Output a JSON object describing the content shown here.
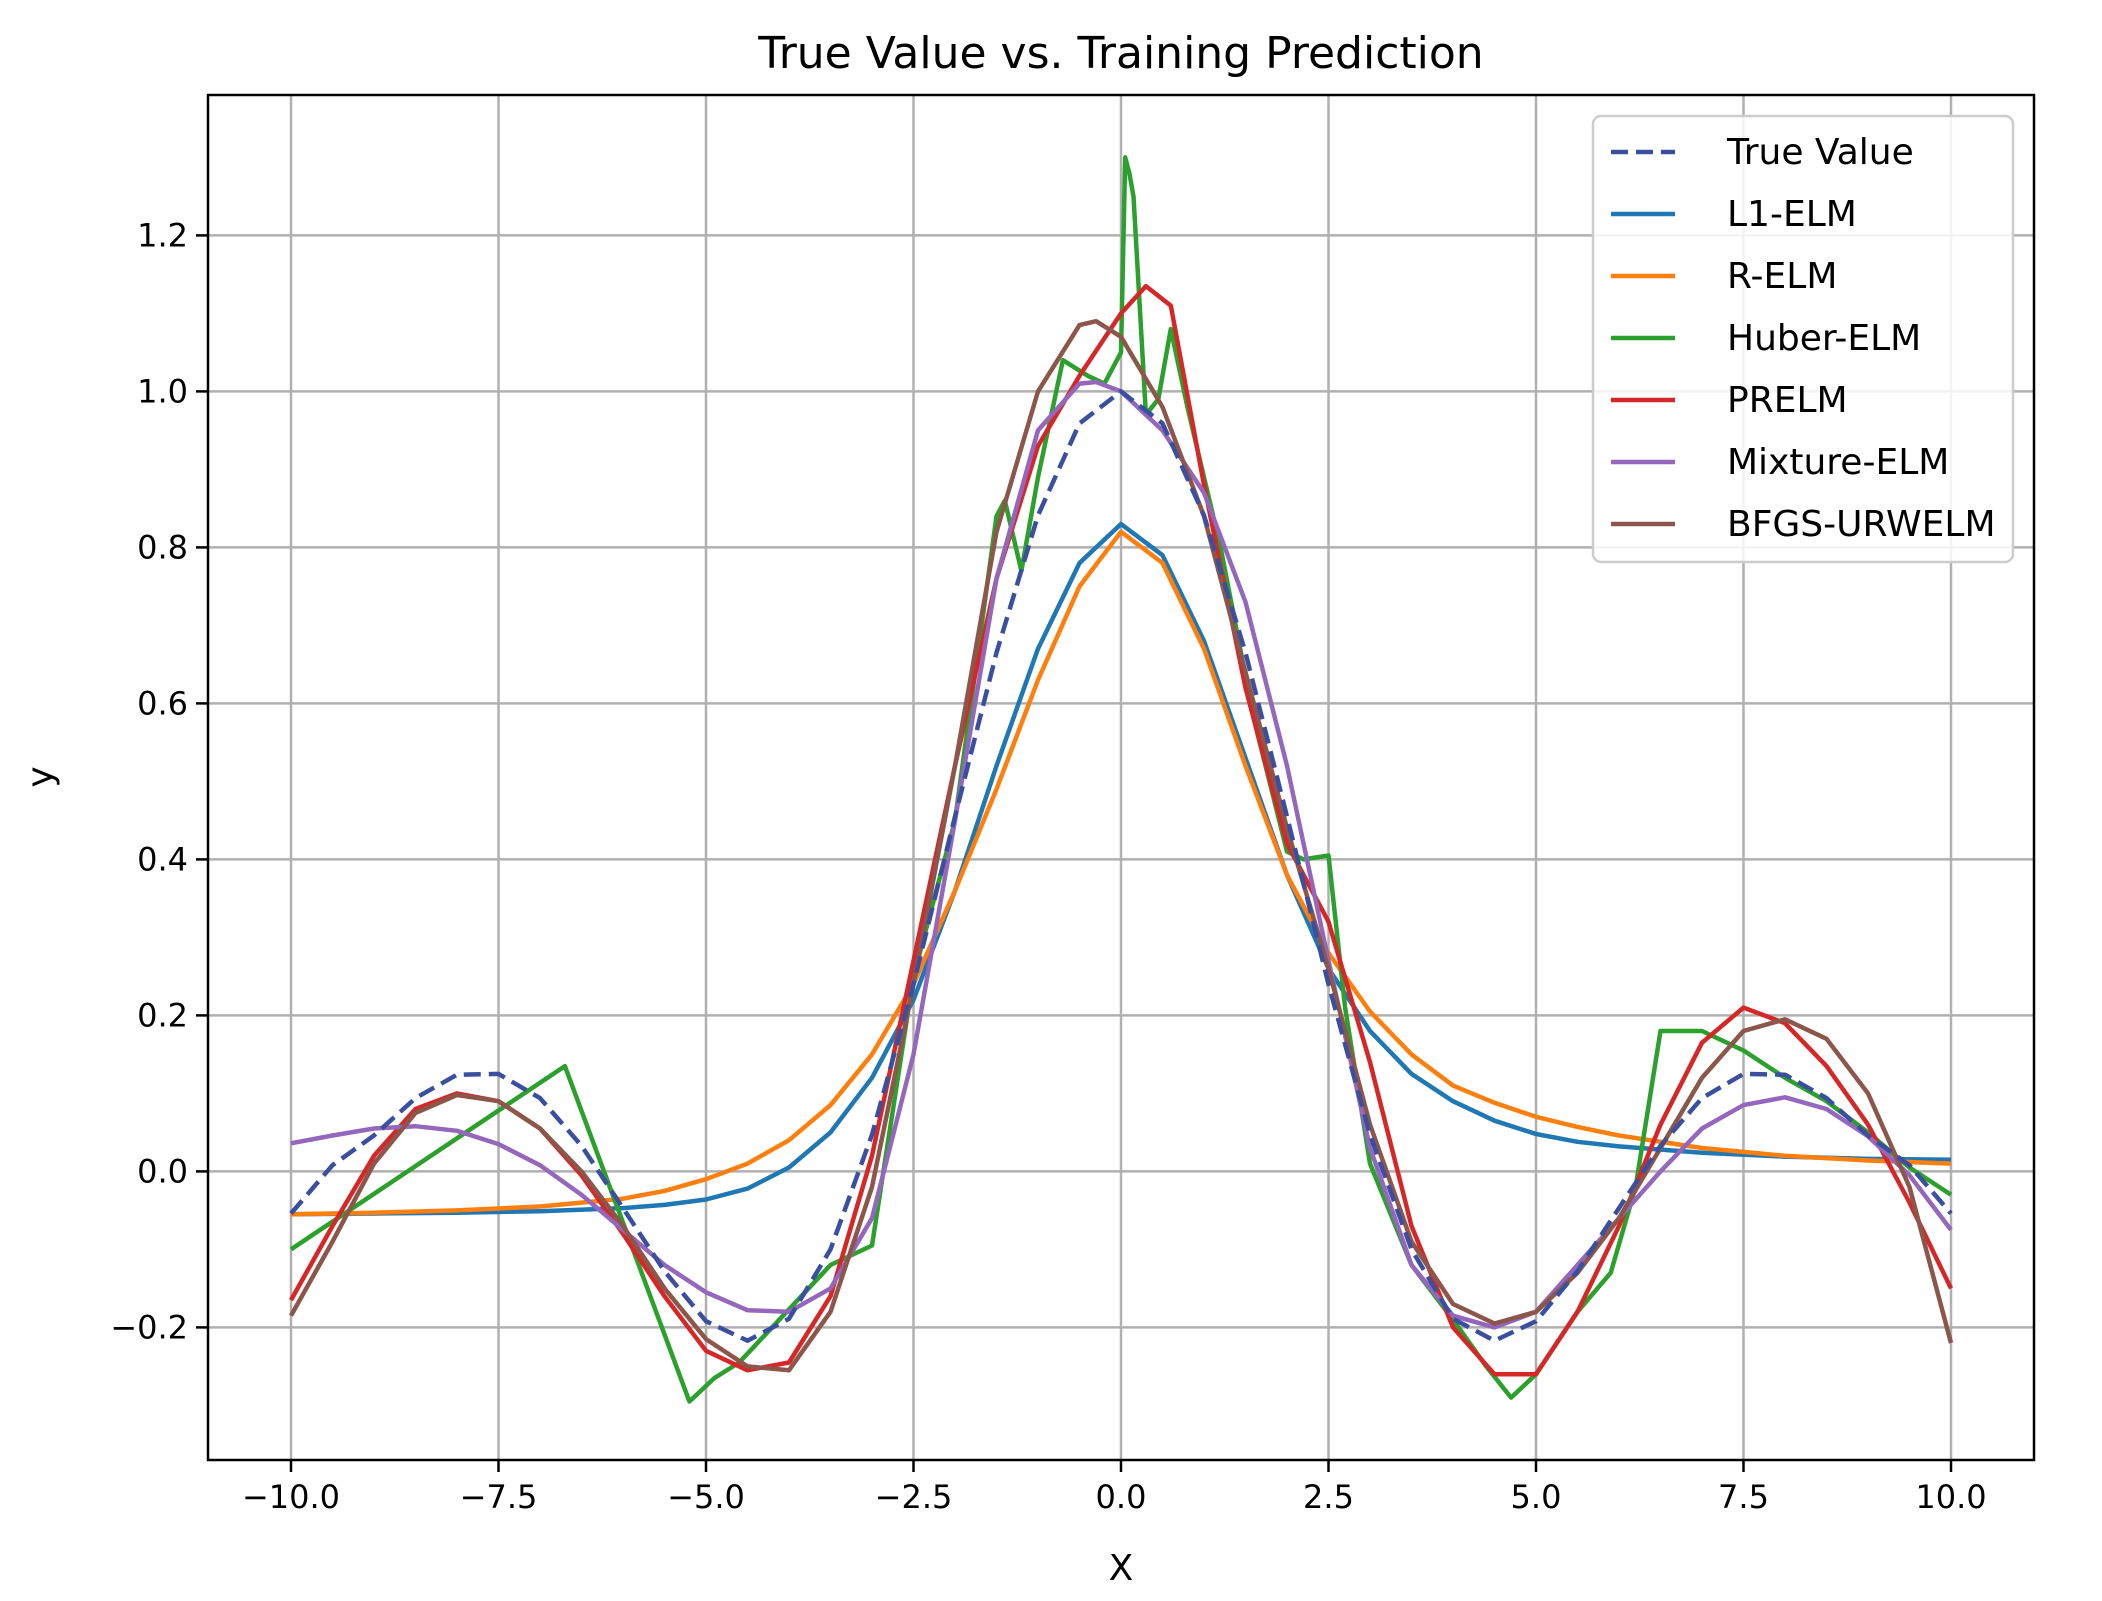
{
  "chart_data": {
    "type": "line",
    "title": "True Value vs. Training Prediction",
    "xlabel": "X",
    "ylabel": "y",
    "xlim": [
      -11.0,
      11.0
    ],
    "ylim": [
      -0.37,
      1.38
    ],
    "xticks": [
      -10.0,
      -7.5,
      -5.0,
      -2.5,
      0.0,
      2.5,
      5.0,
      7.5,
      10.0
    ],
    "xtick_labels": [
      "−10.0",
      "−7.5",
      "−5.0",
      "−2.5",
      "0.0",
      "2.5",
      "5.0",
      "7.5",
      "10.0"
    ],
    "yticks": [
      -0.2,
      0.0,
      0.2,
      0.4,
      0.6,
      0.8,
      1.0,
      1.2
    ],
    "ytick_labels": [
      "−0.2",
      "0.0",
      "0.2",
      "0.4",
      "0.6",
      "0.8",
      "1.0",
      "1.2"
    ],
    "grid": true,
    "legend_position": "top-right",
    "series": [
      {
        "name": "True Value",
        "color": "#3b4fa0",
        "dashed": true,
        "x": [
          -10,
          -9.5,
          -9,
          -8.5,
          -8,
          -7.5,
          -7,
          -6.5,
          -6,
          -5.5,
          -5,
          -4.5,
          -4,
          -3.5,
          -3,
          -2.5,
          -2,
          -1.5,
          -1,
          -0.5,
          0,
          0.5,
          1,
          1.5,
          2,
          2.5,
          3,
          3.5,
          4,
          4.5,
          5,
          5.5,
          6,
          6.5,
          7,
          7.5,
          8,
          8.5,
          9,
          9.5,
          10
        ],
        "y": [
          -0.054,
          0.008,
          0.046,
          0.094,
          0.124,
          0.125,
          0.094,
          0.033,
          -0.047,
          -0.128,
          -0.192,
          -0.217,
          -0.189,
          -0.1,
          0.047,
          0.24,
          0.455,
          0.665,
          0.841,
          0.959,
          1.0,
          0.959,
          0.841,
          0.665,
          0.455,
          0.24,
          0.047,
          -0.1,
          -0.189,
          -0.217,
          -0.192,
          -0.128,
          -0.047,
          0.033,
          0.094,
          0.125,
          0.124,
          0.094,
          0.046,
          0.008,
          -0.054
        ]
      },
      {
        "name": "L1-ELM",
        "color": "#1f77b4",
        "dashed": false,
        "x": [
          -10,
          -9,
          -8,
          -7,
          -6,
          -5.5,
          -5,
          -4.5,
          -4,
          -3.5,
          -3,
          -2.5,
          -2,
          -1.5,
          -1,
          -0.5,
          0,
          0.5,
          1,
          1.5,
          2,
          2.5,
          3,
          3.5,
          4,
          4.5,
          5,
          5.5,
          6,
          7,
          8,
          9,
          10
        ],
        "y": [
          -0.055,
          -0.054,
          -0.053,
          -0.051,
          -0.047,
          -0.043,
          -0.036,
          -0.022,
          0.005,
          0.05,
          0.12,
          0.22,
          0.36,
          0.52,
          0.67,
          0.78,
          0.83,
          0.79,
          0.68,
          0.53,
          0.38,
          0.26,
          0.18,
          0.125,
          0.09,
          0.065,
          0.048,
          0.038,
          0.032,
          0.024,
          0.019,
          0.016,
          0.015
        ]
      },
      {
        "name": "R-ELM",
        "color": "#ff7f0e",
        "dashed": false,
        "x": [
          -10,
          -9,
          -8,
          -7,
          -6,
          -5.5,
          -5,
          -4.5,
          -4,
          -3.5,
          -3,
          -2.5,
          -2,
          -1.5,
          -1,
          -0.5,
          0,
          0.5,
          1,
          1.5,
          2,
          2.5,
          3,
          3.5,
          4,
          4.5,
          5,
          5.5,
          6,
          7,
          8,
          9,
          10
        ],
        "y": [
          -0.055,
          -0.053,
          -0.05,
          -0.045,
          -0.035,
          -0.025,
          -0.01,
          0.01,
          0.04,
          0.085,
          0.15,
          0.24,
          0.36,
          0.49,
          0.63,
          0.75,
          0.82,
          0.78,
          0.67,
          0.52,
          0.38,
          0.28,
          0.205,
          0.15,
          0.11,
          0.088,
          0.07,
          0.057,
          0.046,
          0.03,
          0.02,
          0.014,
          0.01
        ]
      },
      {
        "name": "Huber-ELM",
        "color": "#2ca02c",
        "dashed": false,
        "x": [
          -10,
          -6.7,
          -5.2,
          -4.9,
          -4.6,
          -3.5,
          -3.0,
          -2.5,
          -2.0,
          -1.5,
          -1.4,
          -1.2,
          -1.0,
          -0.7,
          -0.4,
          -0.2,
          0.0,
          0.05,
          0.1,
          0.15,
          0.3,
          0.45,
          0.6,
          0.8,
          1.2,
          1.6,
          2.0,
          2.2,
          2.5,
          2.7,
          3.0,
          3.5,
          4.0,
          4.4,
          4.7,
          5.0,
          5.5,
          5.9,
          6.2,
          6.5,
          7.0,
          7.5,
          8.0,
          8.5,
          9.0,
          9.5,
          10
        ],
        "y": [
          -0.1,
          0.135,
          -0.295,
          -0.265,
          -0.245,
          -0.12,
          -0.095,
          0.25,
          0.45,
          0.84,
          0.86,
          0.77,
          0.89,
          1.04,
          1.02,
          1.01,
          1.05,
          1.3,
          1.28,
          1.25,
          0.97,
          0.99,
          1.08,
          0.98,
          0.8,
          0.58,
          0.41,
          0.4,
          0.405,
          0.21,
          0.01,
          -0.12,
          -0.19,
          -0.25,
          -0.29,
          -0.26,
          -0.18,
          -0.13,
          -0.02,
          0.18,
          0.18,
          0.155,
          0.12,
          0.09,
          0.05,
          0.005,
          -0.03
        ]
      },
      {
        "name": "PRELM",
        "color": "#d62728",
        "dashed": false,
        "x": [
          -10,
          -9.5,
          -9,
          -8.5,
          -8,
          -7.5,
          -7,
          -6.5,
          -6,
          -5.5,
          -5,
          -4.5,
          -4,
          -3.5,
          -3,
          -2.5,
          -2,
          -1.5,
          -1,
          -0.5,
          0,
          0.3,
          0.6,
          1,
          1.5,
          2,
          2.5,
          3,
          3.5,
          4,
          4.5,
          5,
          5.5,
          6,
          6.5,
          7,
          7.5,
          8,
          8.5,
          9,
          9.5,
          10
        ],
        "y": [
          -0.165,
          -0.07,
          0.02,
          0.08,
          0.1,
          0.09,
          0.055,
          -0.005,
          -0.08,
          -0.16,
          -0.23,
          -0.255,
          -0.245,
          -0.16,
          0.02,
          0.27,
          0.52,
          0.76,
          0.93,
          1.02,
          1.1,
          1.135,
          1.11,
          0.88,
          0.62,
          0.42,
          0.32,
          0.14,
          -0.07,
          -0.2,
          -0.26,
          -0.26,
          -0.18,
          -0.07,
          0.06,
          0.165,
          0.21,
          0.19,
          0.135,
          0.06,
          -0.04,
          -0.15
        ]
      },
      {
        "name": "Mixture-ELM",
        "color": "#9467bd",
        "dashed": false,
        "x": [
          -10,
          -9.5,
          -9,
          -8.5,
          -8,
          -7.5,
          -7,
          -6.5,
          -6,
          -5.5,
          -5,
          -4.5,
          -4,
          -3.5,
          -3,
          -2.5,
          -2,
          -1.5,
          -1,
          -0.5,
          -0.3,
          0,
          0.5,
          1,
          1.5,
          2,
          2.5,
          3,
          3.5,
          4,
          4.5,
          5,
          5.5,
          6,
          6.5,
          7,
          7.5,
          8,
          8.5,
          9,
          9.5,
          10
        ],
        "y": [
          0.036,
          0.046,
          0.055,
          0.058,
          0.052,
          0.035,
          0.008,
          -0.03,
          -0.075,
          -0.12,
          -0.155,
          -0.178,
          -0.18,
          -0.15,
          -0.06,
          0.15,
          0.45,
          0.76,
          0.95,
          1.01,
          1.012,
          1.0,
          0.95,
          0.87,
          0.73,
          0.52,
          0.27,
          0.03,
          -0.12,
          -0.185,
          -0.2,
          -0.18,
          -0.12,
          -0.06,
          0.0,
          0.055,
          0.085,
          0.095,
          0.08,
          0.045,
          -0.005,
          -0.075
        ]
      },
      {
        "name": "BFGS-URWELM",
        "color": "#8c564b",
        "dashed": false,
        "x": [
          -10,
          -9.5,
          -9,
          -8.5,
          -8,
          -7.5,
          -7,
          -6.5,
          -6,
          -5.5,
          -5,
          -4.5,
          -4,
          -3.5,
          -3,
          -2.5,
          -2,
          -1.5,
          -1,
          -0.5,
          -0.3,
          0,
          0.5,
          1,
          1.5,
          2,
          2.5,
          3,
          3.5,
          4,
          4.5,
          5,
          5.5,
          6,
          6.5,
          7,
          7.5,
          8,
          8.5,
          9,
          9.5,
          10
        ],
        "y": [
          -0.185,
          -0.09,
          0.01,
          0.075,
          0.098,
          0.09,
          0.055,
          0.0,
          -0.07,
          -0.15,
          -0.215,
          -0.25,
          -0.255,
          -0.18,
          -0.02,
          0.24,
          0.52,
          0.82,
          1.0,
          1.085,
          1.09,
          1.07,
          0.98,
          0.84,
          0.64,
          0.44,
          0.26,
          0.06,
          -0.09,
          -0.17,
          -0.195,
          -0.18,
          -0.13,
          -0.06,
          0.03,
          0.12,
          0.18,
          0.195,
          0.17,
          0.1,
          -0.02,
          -0.22
        ]
      }
    ]
  }
}
